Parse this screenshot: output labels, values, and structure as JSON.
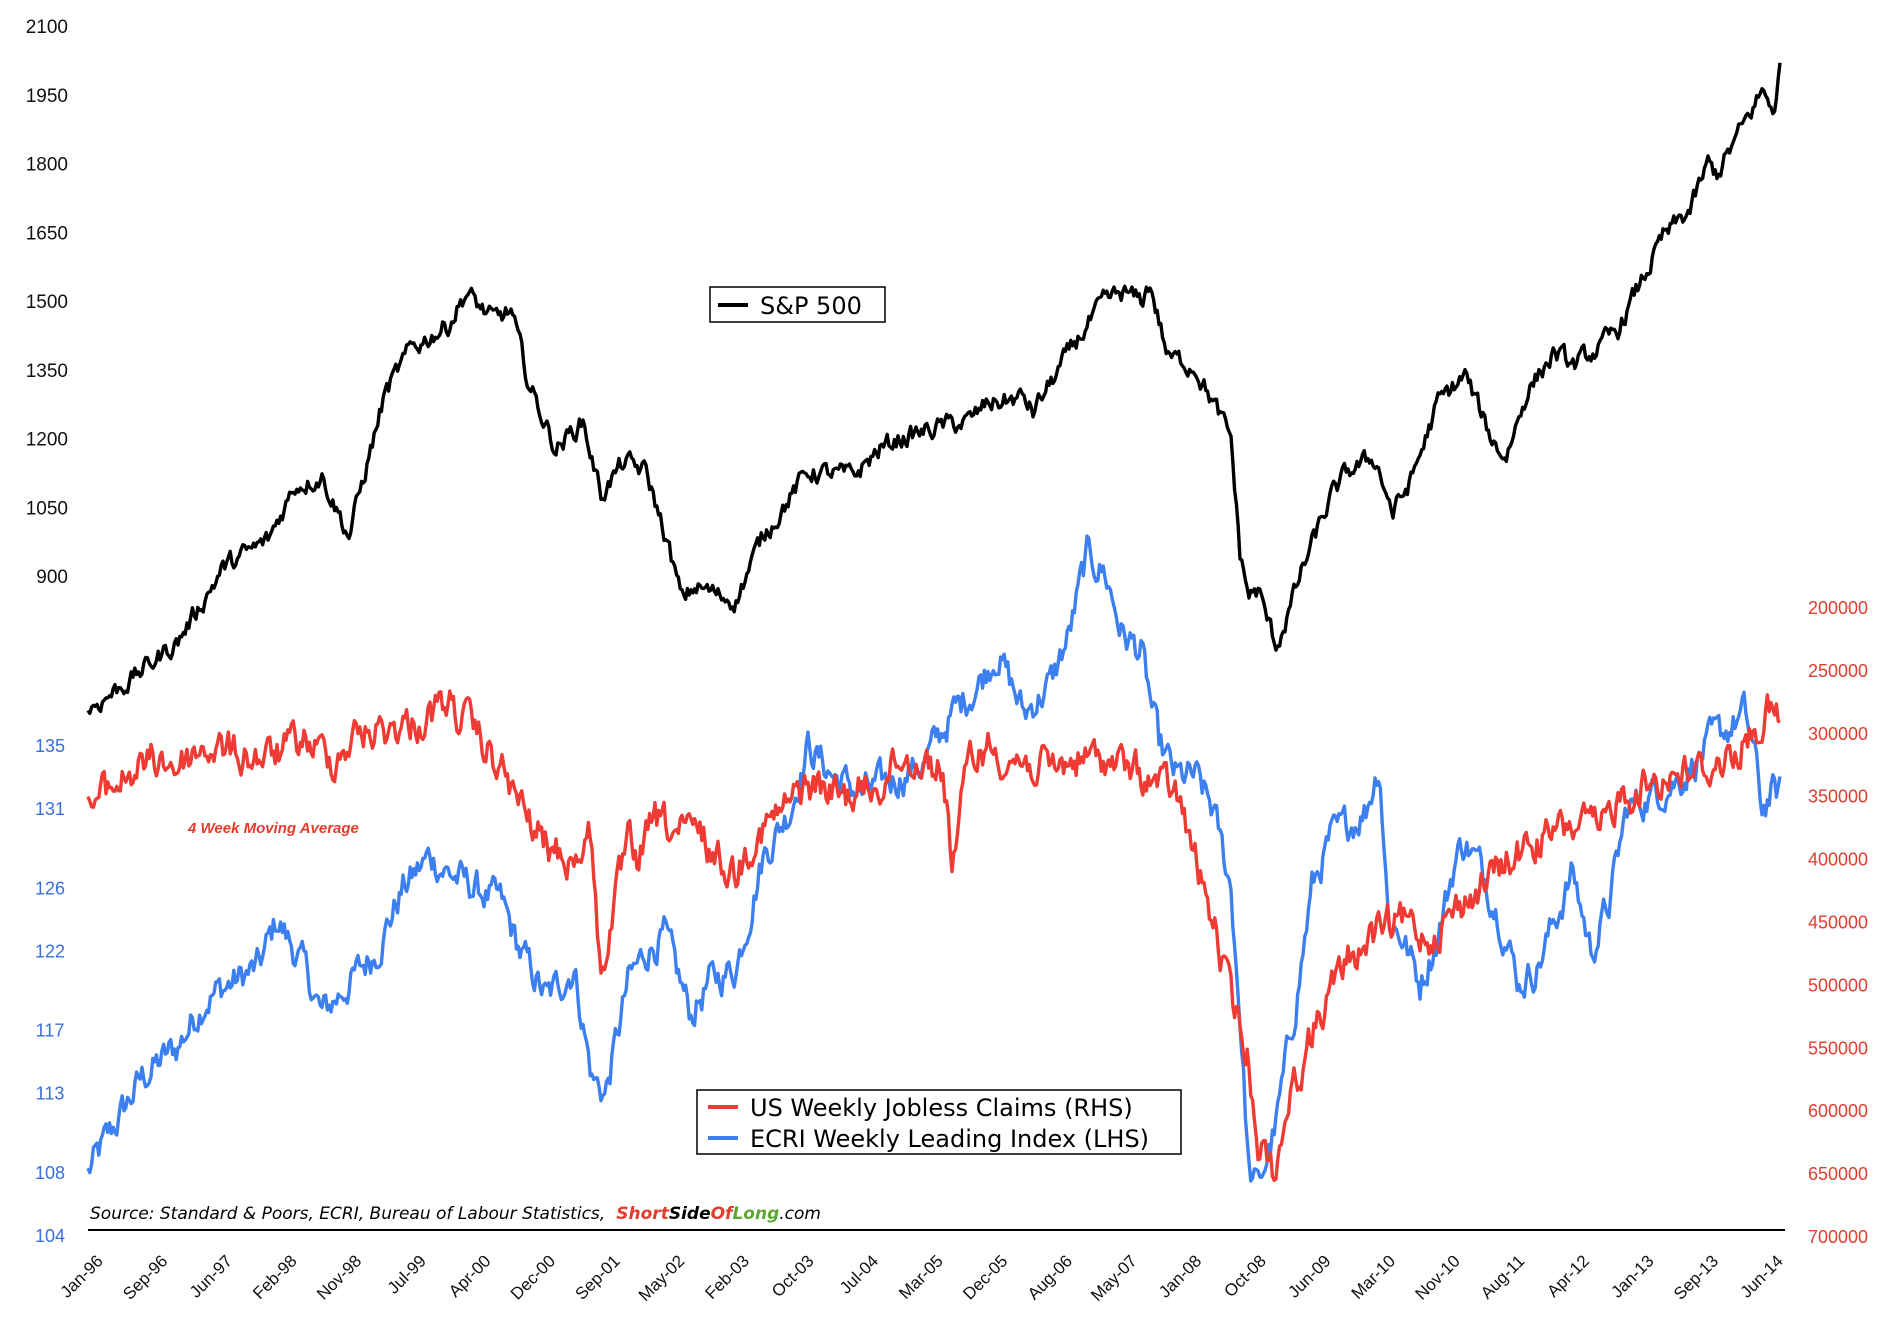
{
  "chart_data": {
    "type": "line",
    "title": "",
    "source": "Source: Standard & Poors, ECRI, Bureau of Labour Statistics,",
    "brand": {
      "short": "Short",
      "side": "Side",
      "of": "Of",
      "long": "Long",
      "com": ".com"
    },
    "note": "4 Week Moving Average",
    "colors": {
      "sp500": "#000000",
      "claims": "#ef3b34",
      "ecri": "#3c7ff0",
      "short": "#e23c2e",
      "long": "#5aa832"
    },
    "x_tick_labels": [
      "Jan-96",
      "Sep-96",
      "Jun-97",
      "Feb-98",
      "Nov-98",
      "Jul-99",
      "Apr-00",
      "Dec-00",
      "Sep-01",
      "May-02",
      "Feb-03",
      "Oct-03",
      "Jul-04",
      "Mar-05",
      "Dec-05",
      "Aug-06",
      "May-07",
      "Jan-08",
      "Oct-08",
      "Jun-09",
      "Mar-10",
      "Nov-10",
      "Aug-11",
      "Apr-12",
      "Jan-13",
      "Sep-13",
      "Jun-14"
    ],
    "x_range": [
      1996.0,
      2014.8
    ],
    "axes": {
      "sp500_ticks": [
        "2100",
        "1950",
        "1800",
        "1650",
        "1500",
        "1350",
        "1200",
        "1050",
        "900"
      ],
      "ecri_ticks": [
        "135",
        "131",
        "126",
        "122",
        "117",
        "113",
        "108",
        "104"
      ],
      "claims_ticks": [
        "200000",
        "250000",
        "300000",
        "350000",
        "400000",
        "450000",
        "500000",
        "550000",
        "600000",
        "650000",
        "700000"
      ],
      "sp500_range": [
        900,
        2100
      ],
      "ecri_range": [
        104,
        135
      ],
      "claims_range": [
        200000,
        700000
      ],
      "claims_inverted": true
    },
    "series": [
      {
        "name": "S&P 500",
        "axis": "sp500",
        "x": [
          1996.0,
          1996.5,
          1997.0,
          1997.5,
          1998.0,
          1998.3,
          1998.6,
          1998.9,
          1999.3,
          1999.6,
          2000.0,
          2000.2,
          2000.5,
          2000.7,
          2000.9,
          2001.2,
          2001.5,
          2001.7,
          2001.95,
          2002.2,
          2002.4,
          2002.6,
          2002.75,
          2003.0,
          2003.2,
          2003.5,
          2004.0,
          2004.5,
          2004.8,
          2005.0,
          2005.5,
          2005.8,
          2006.0,
          2006.4,
          2006.5,
          2007.0,
          2007.3,
          2007.5,
          2007.7,
          2007.8,
          2008.0,
          2008.3,
          2008.5,
          2008.7,
          2008.8,
          2008.9,
          2009.0,
          2009.2,
          2009.3,
          2009.5,
          2009.8,
          2010.0,
          2010.3,
          2010.5,
          2010.7,
          2011.0,
          2011.3,
          2011.6,
          2011.75,
          2012.0,
          2012.3,
          2012.5,
          2012.8,
          2013.0,
          2013.3,
          2013.5,
          2013.8,
          2014.0,
          2014.1,
          2014.3,
          2014.6,
          2014.75,
          2014.8
        ],
        "values": [
          610,
          680,
          760,
          920,
          980,
          1100,
          1120,
          990,
          1300,
          1400,
          1450,
          1520,
          1460,
          1480,
          1320,
          1180,
          1240,
          1080,
          1150,
          1130,
          1000,
          850,
          880,
          860,
          850,
          990,
          1130,
          1120,
          1180,
          1200,
          1230,
          1240,
          1280,
          1290,
          1260,
          1420,
          1500,
          1520,
          1500,
          1540,
          1380,
          1360,
          1280,
          1200,
          950,
          860,
          870,
          750,
          800,
          920,
          1070,
          1130,
          1160,
          1040,
          1110,
          1280,
          1340,
          1200,
          1160,
          1310,
          1390,
          1360,
          1400,
          1440,
          1560,
          1640,
          1700,
          1800,
          1780,
          1850,
          1960,
          1920,
          2010
        ]
      },
      {
        "name": "US Weekly Jobless Claims (RHS)",
        "axis": "claims",
        "x": [
          1996.0,
          1996.3,
          1996.5,
          1996.8,
          1997.0,
          1997.3,
          1997.6,
          1998.0,
          1998.4,
          1998.7,
          1999.0,
          1999.4,
          1999.7,
          2000.0,
          2000.3,
          2000.6,
          2000.9,
          2001.1,
          2001.4,
          2001.6,
          2001.7,
          2001.8,
          2002.0,
          2002.1,
          2002.3,
          2002.6,
          2002.8,
          2003.0,
          2003.2,
          2003.4,
          2003.6,
          2004.0,
          2004.4,
          2004.8,
          2005.0,
          2005.3,
          2005.5,
          2005.6,
          2005.8,
          2006.0,
          2006.3,
          2006.7,
          2007.0,
          2007.3,
          2007.6,
          2007.9,
          2008.1,
          2008.3,
          2008.5,
          2008.7,
          2008.9,
          2009.0,
          2009.2,
          2009.3,
          2009.5,
          2009.7,
          2010.0,
          2010.3,
          2010.6,
          2010.9,
          2011.2,
          2011.5,
          2011.8,
          2012.0,
          2012.3,
          2012.6,
          2012.8,
          2013.0,
          2013.3,
          2013.6,
          2013.9,
          2014.2,
          2014.5,
          2014.6,
          2014.7,
          2014.8
        ],
        "values": [
          360,
          340,
          330,
          320,
          325,
          310,
          315,
          320,
          305,
          320,
          300,
          295,
          290,
          275,
          300,
          330,
          370,
          390,
          400,
          380,
          500,
          450,
          390,
          400,
          370,
          380,
          380,
          400,
          410,
          380,
          370,
          340,
          350,
          340,
          320,
          320,
          330,
          400,
          320,
          310,
          320,
          330,
          320,
          320,
          330,
          340,
          350,
          400,
          450,
          510,
          560,
          620,
          650,
          600,
          560,
          520,
          480,
          460,
          450,
          460,
          440,
          420,
          400,
          390,
          380,
          370,
          380,
          350,
          340,
          330,
          330,
          320,
          300,
          290,
          280,
          295
        ]
      },
      {
        "name": "ECRI Weekly Leading Index (LHS)",
        "axis": "ecri",
        "x": [
          1996.0,
          1996.3,
          1996.6,
          1997.0,
          1997.3,
          1997.6,
          1997.9,
          1998.1,
          1998.4,
          1998.6,
          1998.9,
          1999.2,
          1999.5,
          1999.8,
          2000.0,
          2000.3,
          2000.6,
          2000.8,
          2001.1,
          2001.4,
          2001.6,
          2001.75,
          2002.0,
          2002.2,
          2002.4,
          2002.7,
          2002.9,
          2003.2,
          2003.5,
          2003.8,
          2004.0,
          2004.3,
          2004.6,
          2005.0,
          2005.3,
          2005.6,
          2005.9,
          2006.1,
          2006.4,
          2006.7,
          2006.9,
          2007.1,
          2007.3,
          2007.5,
          2007.7,
          2007.9,
          2008.1,
          2008.3,
          2008.5,
          2008.7,
          2008.8,
          2008.9,
          2009.0,
          2009.2,
          2009.4,
          2009.6,
          2009.8,
          2010.0,
          2010.2,
          2010.35,
          2010.45,
          2010.6,
          2010.8,
          2011.0,
          2011.2,
          2011.3,
          2011.5,
          2011.7,
          2011.9,
          2012.1,
          2012.3,
          2012.5,
          2012.7,
          2012.9,
          2013.1,
          2013.4,
          2013.7,
          2014.0,
          2014.2,
          2014.4,
          2014.5,
          2014.6,
          2014.7,
          2014.8
        ],
        "values": [
          108,
          111,
          114,
          116,
          119,
          120,
          121,
          124,
          121,
          118,
          120,
          122,
          126,
          128,
          127,
          126,
          125,
          122,
          119,
          121,
          114,
          113,
          120,
          122,
          123,
          118,
          120,
          121,
          128,
          131,
          135,
          133,
          132,
          133,
          134,
          137,
          139,
          141,
          137,
          139,
          142,
          147,
          146,
          142,
          141,
          135,
          133,
          133,
          131,
          126,
          118,
          108,
          107,
          111,
          118,
          126,
          129,
          130,
          131,
          134,
          124,
          123,
          120,
          123,
          128,
          129,
          127,
          124,
          120,
          121,
          124,
          127,
          122,
          125,
          131,
          132,
          133,
          135,
          136,
          137,
          135,
          131,
          132,
          132
        ]
      }
    ],
    "legends": {
      "sp500": "S&P 500",
      "claims": "US Weekly Jobless Claims (RHS)",
      "ecri": "ECRI Weekly Leading Index (LHS)"
    }
  }
}
